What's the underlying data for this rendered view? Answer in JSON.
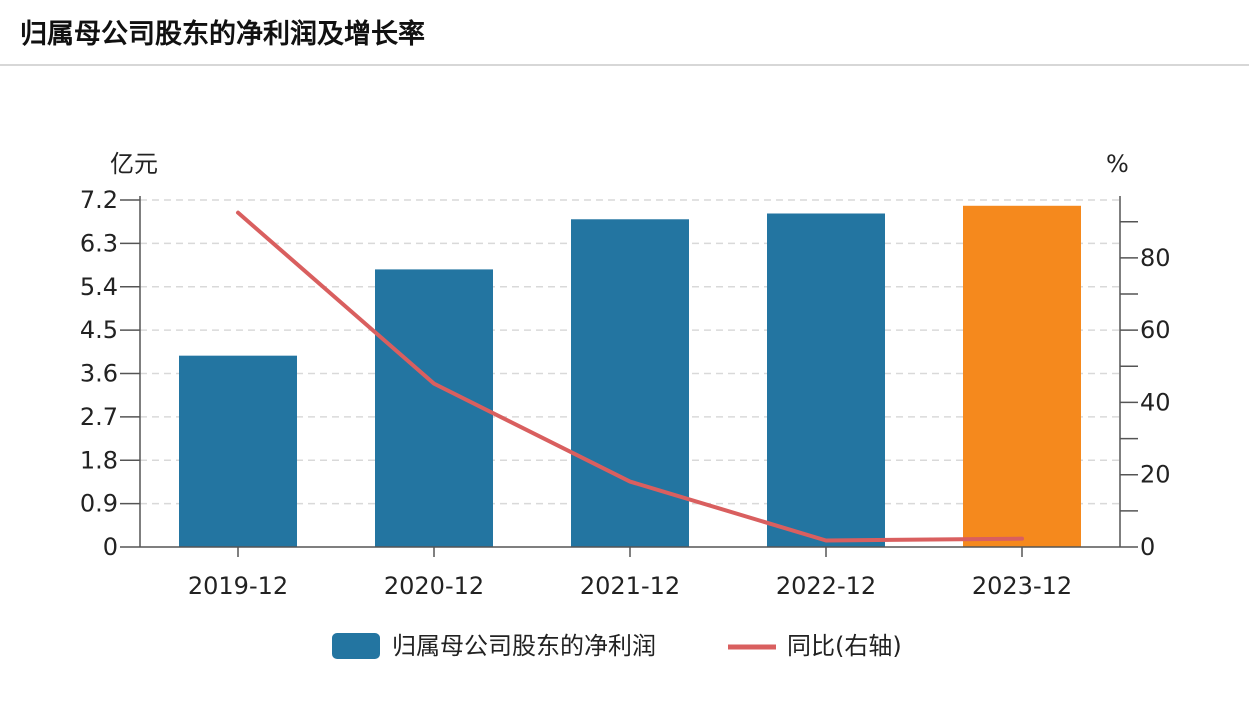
{
  "title": "归属母公司股东的净利润及增长率",
  "chart_data": {
    "type": "bar",
    "categories": [
      "2019-12",
      "2020-12",
      "2021-12",
      "2022-12",
      "2023-12"
    ],
    "series": [
      {
        "name": "归属母公司股东的净利润",
        "type": "bar",
        "axis": "left",
        "values": [
          3.97,
          5.76,
          6.8,
          6.92,
          7.08
        ],
        "color": "#2375a1",
        "highlight_color": "#f5891d",
        "highlight_index": 4
      },
      {
        "name": "同比(右轴)",
        "type": "line",
        "axis": "right",
        "values": [
          92.5,
          45.2,
          18.1,
          1.8,
          2.3
        ],
        "color": "#d95f5f"
      }
    ],
    "left_axis": {
      "unit": "亿元",
      "ylim": [
        0,
        7.2
      ],
      "ticks": [
        "0",
        "0.9",
        "1.8",
        "2.7",
        "3.6",
        "4.5",
        "5.4",
        "6.3",
        "7.2"
      ]
    },
    "right_axis": {
      "unit": "%",
      "ylim": [
        0,
        96
      ],
      "ticks": [
        "0",
        "20",
        "40",
        "60",
        "80"
      ],
      "minor_step": 10
    },
    "grid": true,
    "legend_position": "bottom-center"
  }
}
